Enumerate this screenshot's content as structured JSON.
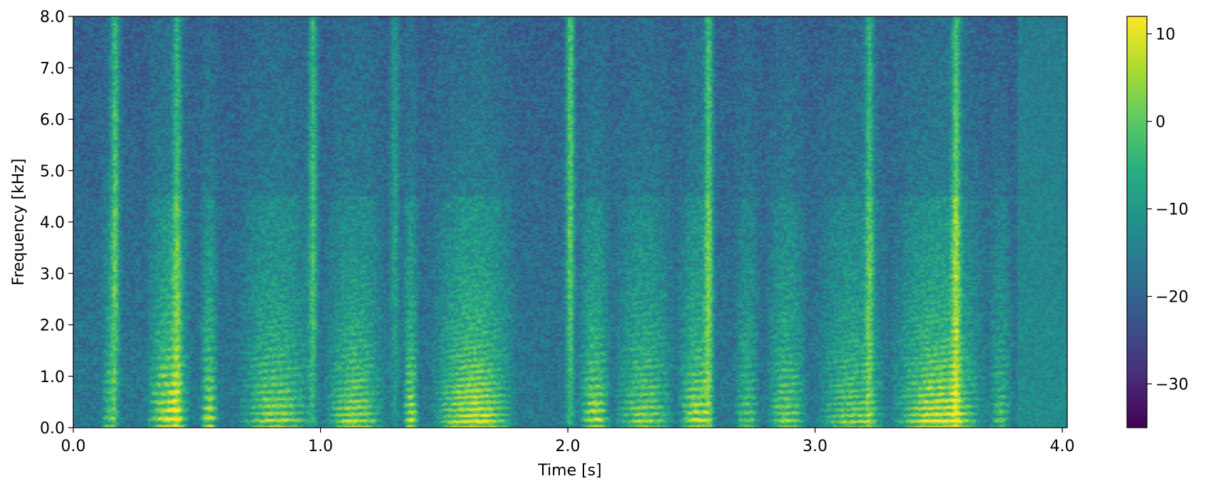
{
  "chart_data": {
    "type": "heatmap",
    "title": "",
    "xlabel": "Time [s]",
    "ylabel": "Frequency [kHz]",
    "xlim": [
      0.0,
      4.02
    ],
    "ylim": [
      0.0,
      8.0
    ],
    "x_ticks": [
      0.0,
      1.0,
      2.0,
      3.0,
      4.0
    ],
    "x_tick_labels": [
      "0.0",
      "1.0",
      "2.0",
      "3.0",
      "4.0"
    ],
    "y_ticks": [
      0.0,
      1.0,
      2.0,
      3.0,
      4.0,
      5.0,
      6.0,
      7.0,
      8.0
    ],
    "y_tick_labels": [
      "0.0",
      "1.0",
      "2.0",
      "3.0",
      "4.0",
      "5.0",
      "6.0",
      "7.0",
      "8.0"
    ],
    "colormap": "viridis",
    "colorbar": {
      "range": [
        -35,
        12
      ],
      "ticks": [
        10,
        0,
        -10,
        -20,
        -30
      ],
      "tick_labels": [
        "10",
        "0",
        "−10",
        "−20",
        "−30"
      ]
    },
    "grid": false,
    "legend": "none",
    "voiced_segments": [
      {
        "start": 0.11,
        "end": 0.18,
        "f0": 0.18,
        "strength": 0.55
      },
      {
        "start": 0.29,
        "end": 0.48,
        "f0": 0.17,
        "strength": 0.95
      },
      {
        "start": 0.51,
        "end": 0.59,
        "f0": 0.19,
        "strength": 0.85
      },
      {
        "start": 0.66,
        "end": 0.98,
        "f0": 0.14,
        "strength": 0.8
      },
      {
        "start": 1.01,
        "end": 1.27,
        "f0": 0.13,
        "strength": 0.82
      },
      {
        "start": 1.33,
        "end": 1.4,
        "f0": 0.15,
        "strength": 0.9
      },
      {
        "start": 1.44,
        "end": 1.8,
        "f0": 0.12,
        "strength": 1.0
      },
      {
        "start": 2.04,
        "end": 2.18,
        "f0": 0.16,
        "strength": 0.85
      },
      {
        "start": 2.18,
        "end": 2.44,
        "f0": 0.13,
        "strength": 0.75
      },
      {
        "start": 2.44,
        "end": 2.6,
        "f0": 0.15,
        "strength": 0.85
      },
      {
        "start": 2.67,
        "end": 2.78,
        "f0": 0.15,
        "strength": 0.6
      },
      {
        "start": 2.8,
        "end": 2.97,
        "f0": 0.14,
        "strength": 0.75
      },
      {
        "start": 3.0,
        "end": 3.3,
        "f0": 0.12,
        "strength": 0.7
      },
      {
        "start": 3.3,
        "end": 3.7,
        "f0": 0.13,
        "strength": 1.0
      },
      {
        "start": 3.7,
        "end": 3.8,
        "f0": 0.15,
        "strength": 0.55
      }
    ],
    "fricative_bursts": [
      {
        "t": 0.17,
        "strength": 0.75
      },
      {
        "t": 0.42,
        "strength": 0.6
      },
      {
        "t": 0.97,
        "strength": 0.7
      },
      {
        "t": 1.3,
        "strength": 0.45
      },
      {
        "t": 2.01,
        "strength": 0.85
      },
      {
        "t": 2.57,
        "strength": 0.75
      },
      {
        "t": 3.22,
        "strength": 0.65
      },
      {
        "t": 3.57,
        "strength": 0.75
      }
    ]
  }
}
